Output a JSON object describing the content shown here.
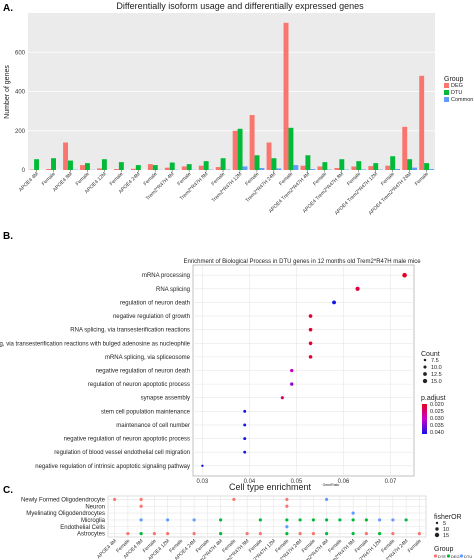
{
  "panels": {
    "a_label": "A.",
    "b_label": "B.",
    "c_label": "C."
  },
  "chart_data": [
    {
      "type": "bar",
      "title": "Differentially isoform usage and differentially expressed genes",
      "ylabel": "Number of genes",
      "xlabel": "",
      "ylim": [
        0,
        800
      ],
      "yticks": [
        0,
        200,
        400,
        600
      ],
      "grid": true,
      "legend": {
        "title": "Group",
        "position": "right",
        "entries": [
          {
            "name": "DEG",
            "color": "#f8766d"
          },
          {
            "name": "DTU",
            "color": "#00ba38"
          },
          {
            "name": "Common",
            "color": "#619cff"
          }
        ]
      },
      "categories": [
        "APOE4 4M",
        "APOE4 4M Female",
        "APOE4 8M",
        "APOE4 8M Female",
        "APOE4 12M",
        "APOE4 12M Female",
        "APOE4 24M",
        "APOE4 24M Female",
        "Trem2*R47H 4M",
        "Trem2*R47H 4M Female",
        "Trem2*R47H 8M",
        "Trem2*R47H 8M Female",
        "Trem2*R47H 12M",
        "Trem2*R47H 12M Female",
        "Trem2*R47H 24M",
        "Trem2*R47H 24M Female",
        "APOE4 Trem2*R47H 4M",
        "APOE4 Trem2*R47H 4M Female",
        "APOE4 Trem2*R47H 8M",
        "APOE4 Trem2*R47H 8M Female",
        "APOE4 Trem2*R47H 12M",
        "APOE4 Trem2*R47H 12M Female",
        "APOE4 Trem2*R47H 24M",
        "APOE4 Trem2*R47H 24M Female"
      ],
      "tick_labels": [
        "APOE4 4M",
        "Female",
        "APOE4 8M",
        "Female",
        "APOE4 12M",
        "Female",
        "APOE4 24M",
        "Female",
        "Trem2*R47H 4M",
        "Female",
        "Trem2*R47H 8M",
        "Female",
        "Trem2*R47H 12M",
        "Female",
        "Trem2*R47H 24M",
        "Female",
        "APOE4 Trem2*R47H 4M",
        "Female",
        "APOE4 Trem2*R47H 8M",
        "Female",
        "APOE4 Trem2*R47H 12M",
        "Female",
        "APOE4 Trem2*R47H 24M",
        "Female"
      ],
      "series": [
        {
          "name": "DEG",
          "color": "#f8766d",
          "values": [
            2,
            5,
            140,
            25,
            8,
            5,
            6,
            30,
            12,
            18,
            22,
            15,
            200,
            280,
            140,
            750,
            22,
            18,
            10,
            18,
            20,
            22,
            220,
            480
          ]
        },
        {
          "name": "DTU",
          "color": "#00ba38",
          "values": [
            55,
            60,
            48,
            35,
            55,
            40,
            25,
            25,
            38,
            30,
            45,
            60,
            210,
            75,
            60,
            215,
            75,
            40,
            55,
            45,
            35,
            70,
            55,
            35
          ]
        },
        {
          "name": "Common",
          "color": "#619cff",
          "values": [
            0,
            0,
            2,
            1,
            0,
            0,
            0,
            1,
            1,
            1,
            2,
            2,
            18,
            10,
            8,
            25,
            5,
            2,
            2,
            3,
            2,
            5,
            12,
            5
          ]
        }
      ]
    },
    {
      "type": "scatter",
      "title": "Enrichment of Biological Process in DTU genes in 12 months old  Trem2*R47H male mice",
      "xlabel": "GeneRatio",
      "xlim": [
        0.028,
        0.075
      ],
      "xticks": [
        0.03,
        0.04,
        0.05,
        0.06,
        0.07
      ],
      "grid": true,
      "terms": [
        "mRNA processing",
        "RNA splicing",
        "regulation of neuron death",
        "negative regulation of growth",
        "RNA splicing, via transesterification reactions",
        "RNA splicing, via transesterification reactions with bulged adenosine as nucleophile",
        "mRNA splicing, via spliceosome",
        "negative regulation of neuron death",
        "regulation of neuron apoptotic process",
        "synapse assembly",
        "stem cell population maintenance",
        "maintenance of cell number",
        "negative regulation of neuron apoptotic process",
        "regulation of blood vessel endothelial cell migration",
        "negative regulation of intrinsic apoptotic signaling pathway"
      ],
      "gene_ratio": [
        0.073,
        0.063,
        0.058,
        0.053,
        0.053,
        0.053,
        0.053,
        0.049,
        0.049,
        0.047,
        0.039,
        0.039,
        0.039,
        0.039,
        0.03
      ],
      "count": [
        16,
        14,
        13,
        12,
        12,
        12,
        12,
        11,
        11,
        10,
        9,
        9,
        9,
        9,
        7
      ],
      "p_adjust": [
        0.02,
        0.022,
        0.04,
        0.021,
        0.021,
        0.021,
        0.021,
        0.03,
        0.033,
        0.024,
        0.04,
        0.04,
        0.04,
        0.04,
        0.04
      ],
      "legend": {
        "count_title": "Count",
        "count_labels": [
          "7.5",
          "10.0",
          "12.5",
          "15.0"
        ],
        "p_title": "p.adjust",
        "p_labels": [
          "0.020",
          "0.025",
          "0.030",
          "0.035",
          "0.040"
        ],
        "position": "right"
      }
    },
    {
      "type": "scatter",
      "title": "Cell type enrichment",
      "rows": [
        "Newly Formed Oligodendrocyte",
        "Neuron",
        "Myelinating Oligodendrocytes",
        "Microglia",
        "Endothelial Cells",
        "Astrocytes"
      ],
      "columns": [
        "APOE4 4M",
        "APOE4 4M Female",
        "APOE4 8M",
        "APOE4 8M Female",
        "APOE4 12M",
        "APOE4 12M Female",
        "APOE4 24M",
        "APOE4 24M Female",
        "Trem2*R47H 4M",
        "Trem2*R47H 4M Female",
        "Trem2*R47H 8M",
        "Trem2*R47H 8M Female",
        "Trem2*R47H 12M",
        "Trem2*R47H 12M Female",
        "Trem2*R47H 24M",
        "Trem2*R47H 24M Female",
        "APOE4 Trem2*R47H 4M",
        "APOE4 Trem2*R47H 4M Female",
        "APOE4 Trem2*R47H 8M",
        "APOE4 Trem2*R47H 8M Female",
        "APOE4 Trem2*R47H 12M",
        "APOE4 Trem2*R47H 12M Female",
        "APOE4 Trem2*R47H 24M",
        "APOE4 Trem2*R47H 24M Female"
      ],
      "tick_labels": [
        "APOE4 4M",
        "Female",
        "APOE4 8M",
        "Female",
        "APOE4 12M",
        "Female",
        "APOE4 24M",
        "Female",
        "Trem2*R47H 4M",
        "Female",
        "Trem2*R47H 8M",
        "Female",
        "Trem2*R47H 12M",
        "Female",
        "Trem2*R47H 24M",
        "Female",
        "APOE4 Trem2*R47H 4M",
        "Female",
        "APOE4 Trem2*R47H 8M",
        "Female",
        "APOE4 Trem2*R47H 12M",
        "Female",
        "APOE4 Trem2*R47H 24M",
        "Female"
      ],
      "points": [
        {
          "row": "Newly Formed Oligodendrocyte",
          "col": 0,
          "group": "DTE"
        },
        {
          "row": "Newly Formed Oligodendrocyte",
          "col": 2,
          "group": "DTE"
        },
        {
          "row": "Newly Formed Oligodendrocyte",
          "col": 9,
          "group": "DTE"
        },
        {
          "row": "Newly Formed Oligodendrocyte",
          "col": 13,
          "group": "DTE"
        },
        {
          "row": "Newly Formed Oligodendrocyte",
          "col": 16,
          "group": "DTU"
        },
        {
          "row": "Neuron",
          "col": 2,
          "group": "DTE"
        },
        {
          "row": "Neuron",
          "col": 13,
          "group": "DTE"
        },
        {
          "row": "Myelinating Oligodendrocytes",
          "col": 18,
          "group": "DTU"
        },
        {
          "row": "Microglia",
          "col": 2,
          "group": "DTU"
        },
        {
          "row": "Microglia",
          "col": 4,
          "group": "DTU"
        },
        {
          "row": "Microglia",
          "col": 6,
          "group": "DTU"
        },
        {
          "row": "Microglia",
          "col": 8,
          "group": "DEG"
        },
        {
          "row": "Microglia",
          "col": 11,
          "group": "DEG"
        },
        {
          "row": "Microglia",
          "col": 13,
          "group": "DEG"
        },
        {
          "row": "Microglia",
          "col": 14,
          "group": "DEG"
        },
        {
          "row": "Microglia",
          "col": 15,
          "group": "DEG"
        },
        {
          "row": "Microglia",
          "col": 16,
          "group": "DEG"
        },
        {
          "row": "Microglia",
          "col": 17,
          "group": "DEG"
        },
        {
          "row": "Microglia",
          "col": 18,
          "group": "DEG"
        },
        {
          "row": "Microglia",
          "col": 19,
          "group": "DEG"
        },
        {
          "row": "Microglia",
          "col": 20,
          "group": "DTU"
        },
        {
          "row": "Microglia",
          "col": 21,
          "group": "DTU"
        },
        {
          "row": "Microglia",
          "col": 22,
          "group": "DEG"
        },
        {
          "row": "Endothelial Cells",
          "col": 13,
          "group": "DTU"
        },
        {
          "row": "Astrocytes",
          "col": 1,
          "group": "DTE"
        },
        {
          "row": "Astrocytes",
          "col": 2,
          "group": "DEG"
        },
        {
          "row": "Astrocytes",
          "col": 3,
          "group": "DTE"
        },
        {
          "row": "Astrocytes",
          "col": 4,
          "group": "DTE"
        },
        {
          "row": "Astrocytes",
          "col": 6,
          "group": "DTE"
        },
        {
          "row": "Astrocytes",
          "col": 8,
          "group": "DEG"
        },
        {
          "row": "Astrocytes",
          "col": 10,
          "group": "DTE"
        },
        {
          "row": "Astrocytes",
          "col": 11,
          "group": "DTE"
        },
        {
          "row": "Astrocytes",
          "col": 13,
          "group": "DEG"
        },
        {
          "row": "Astrocytes",
          "col": 14,
          "group": "DTE"
        },
        {
          "row": "Astrocytes",
          "col": 15,
          "group": "DTE"
        },
        {
          "row": "Astrocytes",
          "col": 16,
          "group": "DEG"
        },
        {
          "row": "Astrocytes",
          "col": 18,
          "group": "DEG"
        },
        {
          "row": "Astrocytes",
          "col": 19,
          "group": "DTE"
        },
        {
          "row": "Astrocytes",
          "col": 20,
          "group": "DEG"
        },
        {
          "row": "Astrocytes",
          "col": 21,
          "group": "DTE"
        },
        {
          "row": "Astrocytes",
          "col": 23,
          "group": "DTE"
        }
      ],
      "legend": {
        "size_title": "fisherOR",
        "size_labels": [
          "5",
          "10",
          "15"
        ],
        "group_title": "Group",
        "groups": [
          {
            "name": "DTE",
            "color": "#f8766d"
          },
          {
            "name": "DEG",
            "color": "#00ba38"
          },
          {
            "name": "DTU",
            "color": "#619cff"
          }
        ],
        "position": "right"
      }
    }
  ]
}
